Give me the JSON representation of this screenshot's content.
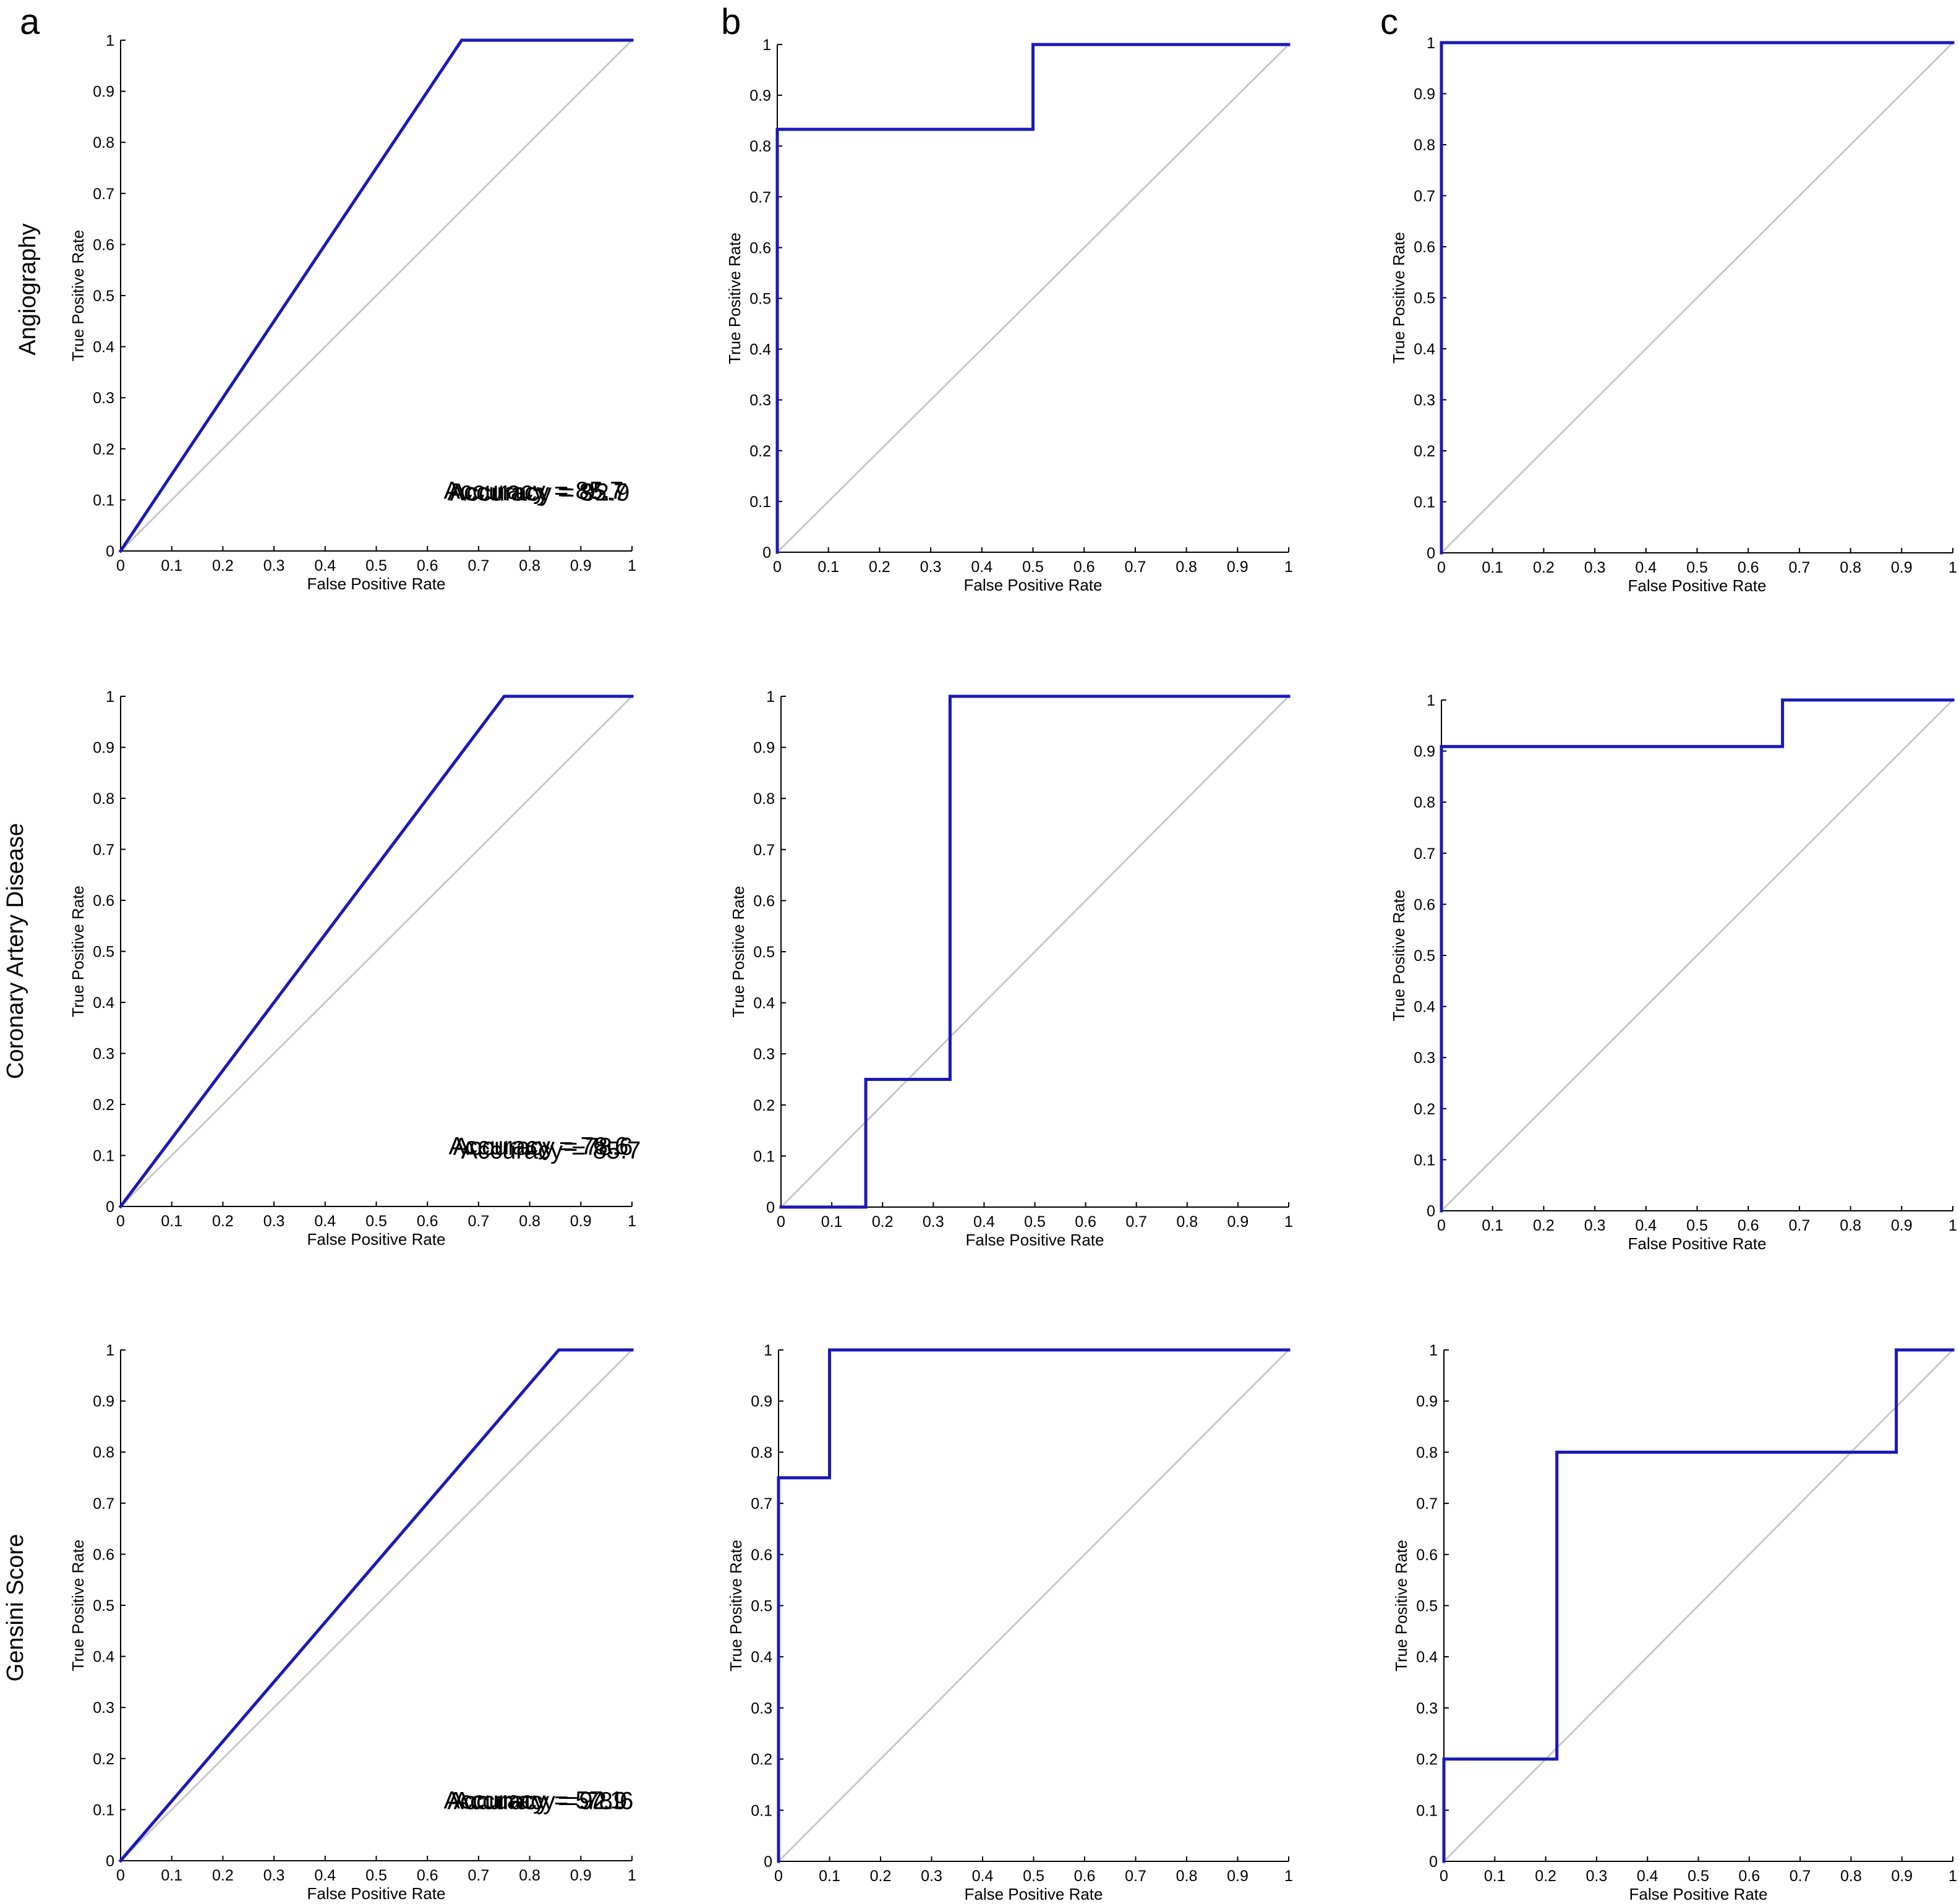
{
  "panel_labels": [
    "a",
    "b",
    "c"
  ],
  "row_labels": [
    "Angiography",
    "Coronary Artery Disease",
    "Gensini Score"
  ],
  "chart_data": [
    {
      "type": "line",
      "panel": "a",
      "row": "Angiography",
      "xlabel": "False Positive Rate",
      "ylabel": "True Positive Rate",
      "xlim": [
        0,
        1
      ],
      "ylim": [
        0,
        1
      ],
      "xticks": [
        "0",
        "0.1",
        "0.2",
        "0.3",
        "0.4",
        "0.5",
        "0.6",
        "0.7",
        "0.8",
        "0.9",
        "1"
      ],
      "yticks": [
        "0",
        "0.1",
        "0.2",
        "0.3",
        "0.4",
        "0.5",
        "0.6",
        "0.7",
        "0.8",
        "0.9",
        "1"
      ],
      "series": [
        {
          "name": "ROC",
          "color": "#1a1ab8",
          "x": [
            0,
            0.667,
            1
          ],
          "y": [
            0,
            1,
            1
          ]
        },
        {
          "name": "chance",
          "color": "#c8c8c8",
          "x": [
            0,
            1
          ],
          "y": [
            0,
            1
          ]
        }
      ],
      "annotation": {
        "label": "Accuracy",
        "value": "= 85.7"
      }
    },
    {
      "type": "line",
      "panel": "b",
      "row": "Angiography",
      "xlabel": "False Positive Rate",
      "ylabel": "True Positive Rate",
      "xlim": [
        0,
        1
      ],
      "ylim": [
        0,
        1
      ],
      "xticks": [
        "0",
        "0.1",
        "0.2",
        "0.3",
        "0.4",
        "0.5",
        "0.6",
        "0.7",
        "0.8",
        "0.9",
        "1"
      ],
      "yticks": [
        "0",
        "0.1",
        "0.2",
        "0.3",
        "0.4",
        "0.5",
        "0.6",
        "0.7",
        "0.8",
        "0.9",
        "1"
      ],
      "series": [
        {
          "name": "ROC",
          "color": "#1a1ab8",
          "x": [
            0,
            0,
            0.5,
            0.5,
            1
          ],
          "y": [
            0,
            0.833,
            0.833,
            1,
            1
          ]
        },
        {
          "name": "chance",
          "color": "#c8c8c8",
          "x": [
            0,
            1
          ],
          "y": [
            0,
            1
          ]
        }
      ],
      "annotation": {
        "label": "Accuracy",
        "value": "= 85.7"
      }
    },
    {
      "type": "line",
      "panel": "c",
      "row": "Angiography",
      "xlabel": "False Positive Rate",
      "ylabel": "True Positive Rate",
      "xlim": [
        0,
        1
      ],
      "ylim": [
        0,
        1
      ],
      "xticks": [
        "0",
        "0.1",
        "0.2",
        "0.3",
        "0.4",
        "0.5",
        "0.6",
        "0.7",
        "0.8",
        "0.9",
        "1"
      ],
      "yticks": [
        "0",
        "0.1",
        "0.2",
        "0.3",
        "0.4",
        "0.5",
        "0.6",
        "0.7",
        "0.8",
        "0.9",
        "1"
      ],
      "series": [
        {
          "name": "ROC",
          "color": "#1a1ab8",
          "x": [
            0,
            0,
            1
          ],
          "y": [
            0,
            1,
            1
          ]
        },
        {
          "name": "chance",
          "color": "#c8c8c8",
          "x": [
            0,
            1
          ],
          "y": [
            0,
            1
          ]
        }
      ],
      "annotation": {
        "label": "Accuracy",
        "value": "= 92.9"
      }
    },
    {
      "type": "line",
      "panel": "a",
      "row": "Coronary Artery Disease",
      "xlabel": "False Positive Rate",
      "ylabel": "True Positive Rate",
      "xlim": [
        0,
        1
      ],
      "ylim": [
        0,
        1
      ],
      "xticks": [
        "0",
        "0.1",
        "0.2",
        "0.3",
        "0.4",
        "0.5",
        "0.6",
        "0.7",
        "0.8",
        "0.9",
        "1"
      ],
      "yticks": [
        "0",
        "0.1",
        "0.2",
        "0.3",
        "0.4",
        "0.5",
        "0.6",
        "0.7",
        "0.8",
        "0.9",
        "1"
      ],
      "series": [
        {
          "name": "ROC",
          "color": "#1a1ab8",
          "x": [
            0,
            0.75,
            1
          ],
          "y": [
            0,
            1,
            1
          ]
        },
        {
          "name": "chance",
          "color": "#c8c8c8",
          "x": [
            0,
            1
          ],
          "y": [
            0,
            1
          ]
        }
      ],
      "annotation": {
        "label": "Accuracy",
        "value": "= 78.6"
      }
    },
    {
      "type": "line",
      "panel": "b",
      "row": "Coronary Artery Disease",
      "xlabel": "False Positive Rate",
      "ylabel": "True Positive Rate",
      "xlim": [
        0,
        1
      ],
      "ylim": [
        0,
        1
      ],
      "xticks": [
        "0",
        "0.1",
        "0.2",
        "0.3",
        "0.4",
        "0.5",
        "0.6",
        "0.7",
        "0.8",
        "0.9",
        "1"
      ],
      "yticks": [
        "0",
        "0.1",
        "0.2",
        "0.3",
        "0.4",
        "0.5",
        "0.6",
        "0.7",
        "0.8",
        "0.9",
        "1"
      ],
      "series": [
        {
          "name": "ROC",
          "color": "#1a1ab8",
          "x": [
            0,
            0.167,
            0.167,
            0.333,
            0.333,
            1
          ],
          "y": [
            0,
            0,
            0.25,
            0.25,
            1,
            1
          ]
        },
        {
          "name": "chance",
          "color": "#c8c8c8",
          "x": [
            0,
            1
          ],
          "y": [
            0,
            1
          ]
        }
      ],
      "annotation": {
        "label": "Accuracy",
        "value": "= 78.6"
      }
    },
    {
      "type": "line",
      "panel": "c",
      "row": "Coronary Artery Disease",
      "xlabel": "False Positive Rate",
      "ylabel": "True Positive Rate",
      "xlim": [
        0,
        1
      ],
      "ylim": [
        0,
        1
      ],
      "xticks": [
        "0",
        "0.1",
        "0.2",
        "0.3",
        "0.4",
        "0.5",
        "0.6",
        "0.7",
        "0.8",
        "0.9",
        "1"
      ],
      "yticks": [
        "0",
        "0.1",
        "0.2",
        "0.3",
        "0.4",
        "0.5",
        "0.6",
        "0.7",
        "0.8",
        "0.9",
        "1"
      ],
      "series": [
        {
          "name": "ROC",
          "color": "#1a1ab8",
          "x": [
            0,
            0,
            0.667,
            0.667,
            1
          ],
          "y": [
            0,
            0.909,
            0.909,
            1,
            1
          ]
        },
        {
          "name": "chance",
          "color": "#c8c8c8",
          "x": [
            0,
            1
          ],
          "y": [
            0,
            1
          ]
        }
      ],
      "annotation": {
        "label": "Accuracy",
        "value": "= 85.7"
      }
    },
    {
      "type": "line",
      "panel": "a",
      "row": "Gensini Score",
      "xlabel": "False Positive Rate",
      "ylabel": "True Positive Rate",
      "xlim": [
        0,
        1
      ],
      "ylim": [
        0,
        1
      ],
      "xticks": [
        "0",
        "0.1",
        "0.2",
        "0.3",
        "0.4",
        "0.5",
        "0.6",
        "0.7",
        "0.8",
        "0.9",
        "1"
      ],
      "yticks": [
        "0",
        "0.1",
        "0.2",
        "0.3",
        "0.4",
        "0.5",
        "0.6",
        "0.7",
        "0.8",
        "0.9",
        "1"
      ],
      "series": [
        {
          "name": "ROC",
          "color": "#1a1ab8",
          "x": [
            0,
            0.857,
            1
          ],
          "y": [
            0,
            1,
            1
          ]
        },
        {
          "name": "chance",
          "color": "#c8c8c8",
          "x": [
            0,
            1
          ],
          "y": [
            0,
            1
          ]
        }
      ],
      "annotation": {
        "label": "Accuracy",
        "value": "= 57.1"
      }
    },
    {
      "type": "line",
      "panel": "b",
      "row": "Gensini Score",
      "xlabel": "False Positive Rate",
      "ylabel": "True Positive Rate",
      "xlim": [
        0,
        1
      ],
      "ylim": [
        0,
        1
      ],
      "xticks": [
        "0",
        "0.1",
        "0.2",
        "0.3",
        "0.4",
        "0.5",
        "0.6",
        "0.7",
        "0.8",
        "0.9",
        "1"
      ],
      "yticks": [
        "0",
        "0.1",
        "0.2",
        "0.3",
        "0.4",
        "0.5",
        "0.6",
        "0.7",
        "0.8",
        "0.9",
        "1"
      ],
      "series": [
        {
          "name": "ROC",
          "color": "#1a1ab8",
          "x": [
            0,
            0,
            0.1,
            0.1,
            1
          ],
          "y": [
            0,
            0.75,
            0.75,
            1,
            1
          ]
        },
        {
          "name": "chance",
          "color": "#c8c8c8",
          "x": [
            0,
            1
          ],
          "y": [
            0,
            1
          ]
        }
      ],
      "annotation": {
        "label": "Accuracy",
        "value": "= 92.9"
      }
    },
    {
      "type": "line",
      "panel": "c",
      "row": "Gensini Score",
      "xlabel": "False Positive Rate",
      "ylabel": "True Positive Rate",
      "xlim": [
        0,
        1
      ],
      "ylim": [
        0,
        1
      ],
      "xticks": [
        "0",
        "0.1",
        "0.2",
        "0.3",
        "0.4",
        "0.5",
        "0.6",
        "0.7",
        "0.8",
        "0.9",
        "1"
      ],
      "yticks": [
        "0",
        "0.1",
        "0.2",
        "0.3",
        "0.4",
        "0.5",
        "0.6",
        "0.7",
        "0.8",
        "0.9",
        "1"
      ],
      "series": [
        {
          "name": "ROC",
          "color": "#1a1ab8",
          "x": [
            0,
            0,
            0.222,
            0.222,
            0.889,
            0.889,
            1
          ],
          "y": [
            0,
            0.2,
            0.2,
            0.8,
            0.8,
            1,
            1
          ]
        },
        {
          "name": "chance",
          "color": "#c8c8c8",
          "x": [
            0,
            1
          ],
          "y": [
            0,
            1
          ]
        }
      ],
      "annotation": {
        "label": "Accuracy",
        "value": "= 78.6"
      }
    }
  ]
}
